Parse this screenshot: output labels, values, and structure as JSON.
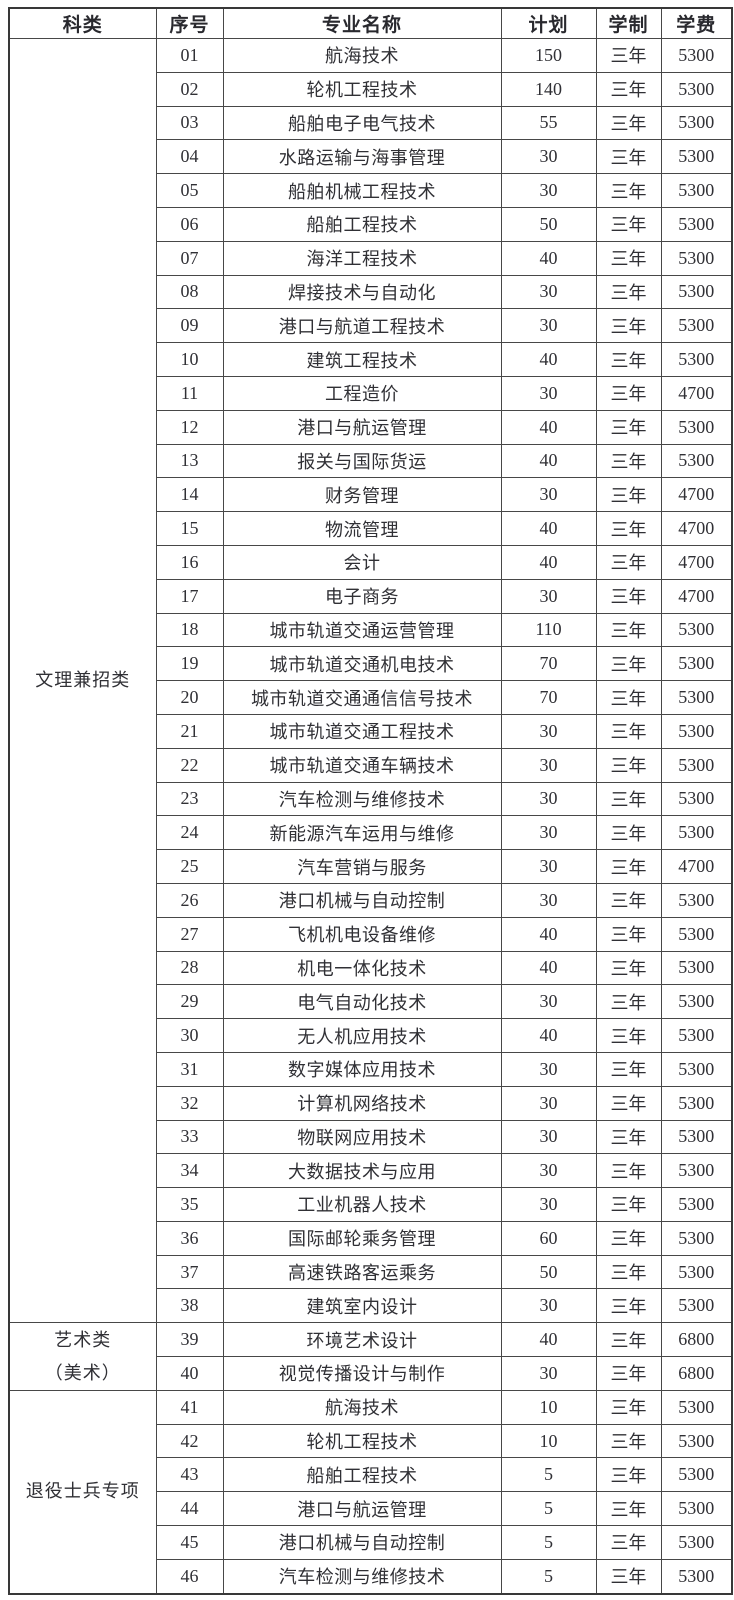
{
  "table": {
    "columns": [
      "科类",
      "序号",
      "专业名称",
      "计划",
      "学制",
      "学费"
    ],
    "groups": [
      {
        "category_lines": [
          "文理兼招类"
        ],
        "rows": [
          [
            "01",
            "航海技术",
            "150",
            "三年",
            "5300"
          ],
          [
            "02",
            "轮机工程技术",
            "140",
            "三年",
            "5300"
          ],
          [
            "03",
            "船舶电子电气技术",
            "55",
            "三年",
            "5300"
          ],
          [
            "04",
            "水路运输与海事管理",
            "30",
            "三年",
            "5300"
          ],
          [
            "05",
            "船舶机械工程技术",
            "30",
            "三年",
            "5300"
          ],
          [
            "06",
            "船舶工程技术",
            "50",
            "三年",
            "5300"
          ],
          [
            "07",
            "海洋工程技术",
            "40",
            "三年",
            "5300"
          ],
          [
            "08",
            "焊接技术与自动化",
            "30",
            "三年",
            "5300"
          ],
          [
            "09",
            "港口与航道工程技术",
            "30",
            "三年",
            "5300"
          ],
          [
            "10",
            "建筑工程技术",
            "40",
            "三年",
            "5300"
          ],
          [
            "11",
            "工程造价",
            "30",
            "三年",
            "4700"
          ],
          [
            "12",
            "港口与航运管理",
            "40",
            "三年",
            "5300"
          ],
          [
            "13",
            "报关与国际货运",
            "40",
            "三年",
            "5300"
          ],
          [
            "14",
            "财务管理",
            "30",
            "三年",
            "4700"
          ],
          [
            "15",
            "物流管理",
            "40",
            "三年",
            "4700"
          ],
          [
            "16",
            "会计",
            "40",
            "三年",
            "4700"
          ],
          [
            "17",
            "电子商务",
            "30",
            "三年",
            "4700"
          ],
          [
            "18",
            "城市轨道交通运营管理",
            "110",
            "三年",
            "5300"
          ],
          [
            "19",
            "城市轨道交通机电技术",
            "70",
            "三年",
            "5300"
          ],
          [
            "20",
            "城市轨道交通通信信号技术",
            "70",
            "三年",
            "5300"
          ],
          [
            "21",
            "城市轨道交通工程技术",
            "30",
            "三年",
            "5300"
          ],
          [
            "22",
            "城市轨道交通车辆技术",
            "30",
            "三年",
            "5300"
          ],
          [
            "23",
            "汽车检测与维修技术",
            "30",
            "三年",
            "5300"
          ],
          [
            "24",
            "新能源汽车运用与维修",
            "30",
            "三年",
            "5300"
          ],
          [
            "25",
            "汽车营销与服务",
            "30",
            "三年",
            "4700"
          ],
          [
            "26",
            "港口机械与自动控制",
            "30",
            "三年",
            "5300"
          ],
          [
            "27",
            "飞机机电设备维修",
            "40",
            "三年",
            "5300"
          ],
          [
            "28",
            "机电一体化技术",
            "40",
            "三年",
            "5300"
          ],
          [
            "29",
            "电气自动化技术",
            "30",
            "三年",
            "5300"
          ],
          [
            "30",
            "无人机应用技术",
            "40",
            "三年",
            "5300"
          ],
          [
            "31",
            "数字媒体应用技术",
            "30",
            "三年",
            "5300"
          ],
          [
            "32",
            "计算机网络技术",
            "30",
            "三年",
            "5300"
          ],
          [
            "33",
            "物联网应用技术",
            "30",
            "三年",
            "5300"
          ],
          [
            "34",
            "大数据技术与应用",
            "30",
            "三年",
            "5300"
          ],
          [
            "35",
            "工业机器人技术",
            "30",
            "三年",
            "5300"
          ],
          [
            "36",
            "国际邮轮乘务管理",
            "60",
            "三年",
            "5300"
          ],
          [
            "37",
            "高速铁路客运乘务",
            "50",
            "三年",
            "5300"
          ],
          [
            "38",
            "建筑室内设计",
            "30",
            "三年",
            "5300"
          ]
        ]
      },
      {
        "category_lines": [
          "艺术类",
          "（美术）"
        ],
        "rows": [
          [
            "39",
            "环境艺术设计",
            "40",
            "三年",
            "6800"
          ],
          [
            "40",
            "视觉传播设计与制作",
            "30",
            "三年",
            "6800"
          ]
        ]
      },
      {
        "category_lines": [
          "退役士兵专项"
        ],
        "rows": [
          [
            "41",
            "航海技术",
            "10",
            "三年",
            "5300"
          ],
          [
            "42",
            "轮机工程技术",
            "10",
            "三年",
            "5300"
          ],
          [
            "43",
            "船舶工程技术",
            "5",
            "三年",
            "5300"
          ],
          [
            "44",
            "港口与航运管理",
            "5",
            "三年",
            "5300"
          ],
          [
            "45",
            "港口机械与自动控制",
            "5",
            "三年",
            "5300"
          ],
          [
            "46",
            "汽车检测与维修技术",
            "5",
            "三年",
            "5300"
          ]
        ]
      }
    ]
  },
  "colors": {
    "text": "#2d2d31",
    "grid_border": "#474747",
    "outer_border": "#383838",
    "background": "#ffffff"
  }
}
